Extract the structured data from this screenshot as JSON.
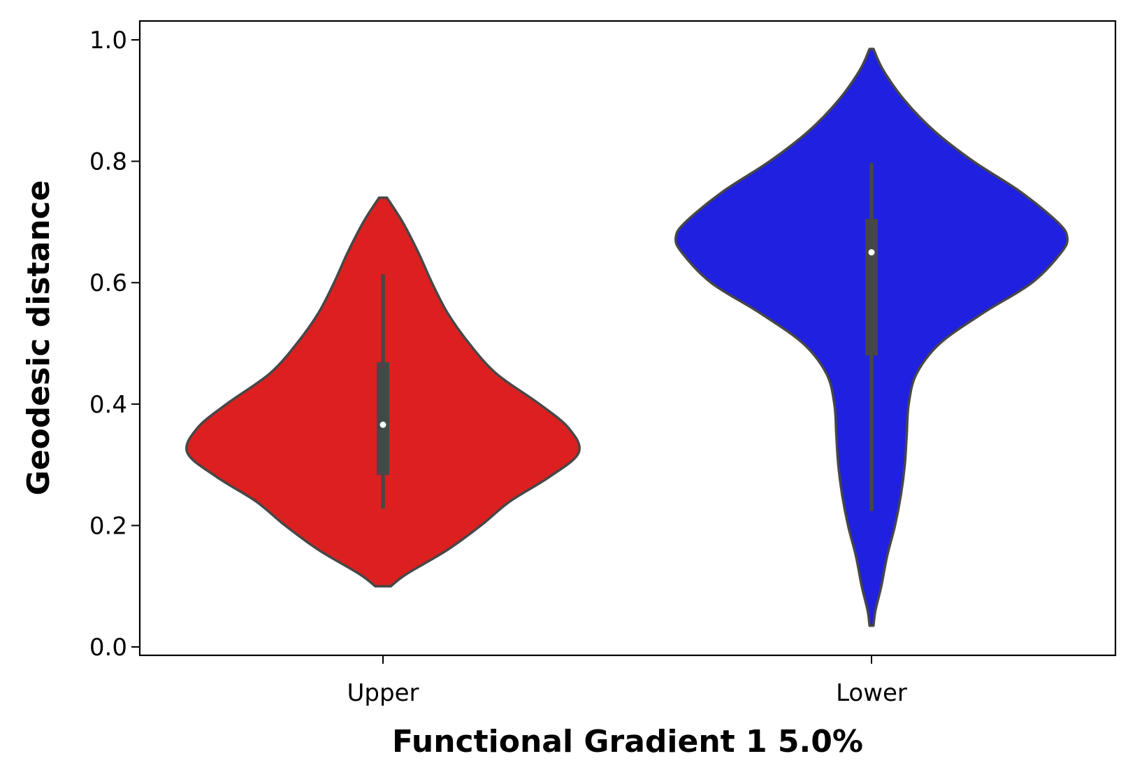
{
  "chart_data": {
    "type": "violin",
    "title": "",
    "xlabel": "Functional Gradient 1 5.0%",
    "ylabel": "Geodesic distance",
    "ylim": [
      0.0,
      1.0
    ],
    "yticks": [
      "0.0",
      "0.2",
      "0.4",
      "0.6",
      "0.8",
      "1.0"
    ],
    "categories": [
      "Upper",
      "Lower"
    ],
    "grid": false,
    "legend": "none",
    "colors": {
      "Upper": "#dc2020",
      "Lower": "#1f20e0",
      "outline": "#474747"
    },
    "series": [
      {
        "category": "Upper",
        "min": 0.1,
        "max": 0.74,
        "median": 0.366,
        "q1": 0.283,
        "q3": 0.469,
        "whisker_low": 0.228,
        "whisker_high": 0.614,
        "density": [
          [
            0.1,
            0.04
          ],
          [
            0.12,
            0.12
          ],
          [
            0.16,
            0.33
          ],
          [
            0.2,
            0.5
          ],
          [
            0.24,
            0.65
          ],
          [
            0.28,
            0.85
          ],
          [
            0.32,
            1.0
          ],
          [
            0.36,
            0.95
          ],
          [
            0.4,
            0.8
          ],
          [
            0.45,
            0.58
          ],
          [
            0.5,
            0.44
          ],
          [
            0.55,
            0.33
          ],
          [
            0.6,
            0.25
          ],
          [
            0.65,
            0.18
          ],
          [
            0.7,
            0.1
          ],
          [
            0.74,
            0.02
          ]
        ]
      },
      {
        "category": "Lower",
        "min": 0.035,
        "max": 0.985,
        "median": 0.65,
        "q1": 0.48,
        "q3": 0.705,
        "whisker_low": 0.224,
        "whisker_high": 0.797,
        "density": [
          [
            0.035,
            0.01
          ],
          [
            0.06,
            0.02
          ],
          [
            0.1,
            0.05
          ],
          [
            0.15,
            0.08
          ],
          [
            0.2,
            0.12
          ],
          [
            0.25,
            0.15
          ],
          [
            0.3,
            0.17
          ],
          [
            0.35,
            0.18
          ],
          [
            0.4,
            0.19
          ],
          [
            0.45,
            0.23
          ],
          [
            0.5,
            0.35
          ],
          [
            0.55,
            0.57
          ],
          [
            0.6,
            0.82
          ],
          [
            0.65,
            0.97
          ],
          [
            0.675,
            1.0
          ],
          [
            0.7,
            0.95
          ],
          [
            0.75,
            0.76
          ],
          [
            0.8,
            0.52
          ],
          [
            0.85,
            0.32
          ],
          [
            0.9,
            0.17
          ],
          [
            0.95,
            0.06
          ],
          [
            0.985,
            0.01
          ]
        ]
      }
    ]
  }
}
